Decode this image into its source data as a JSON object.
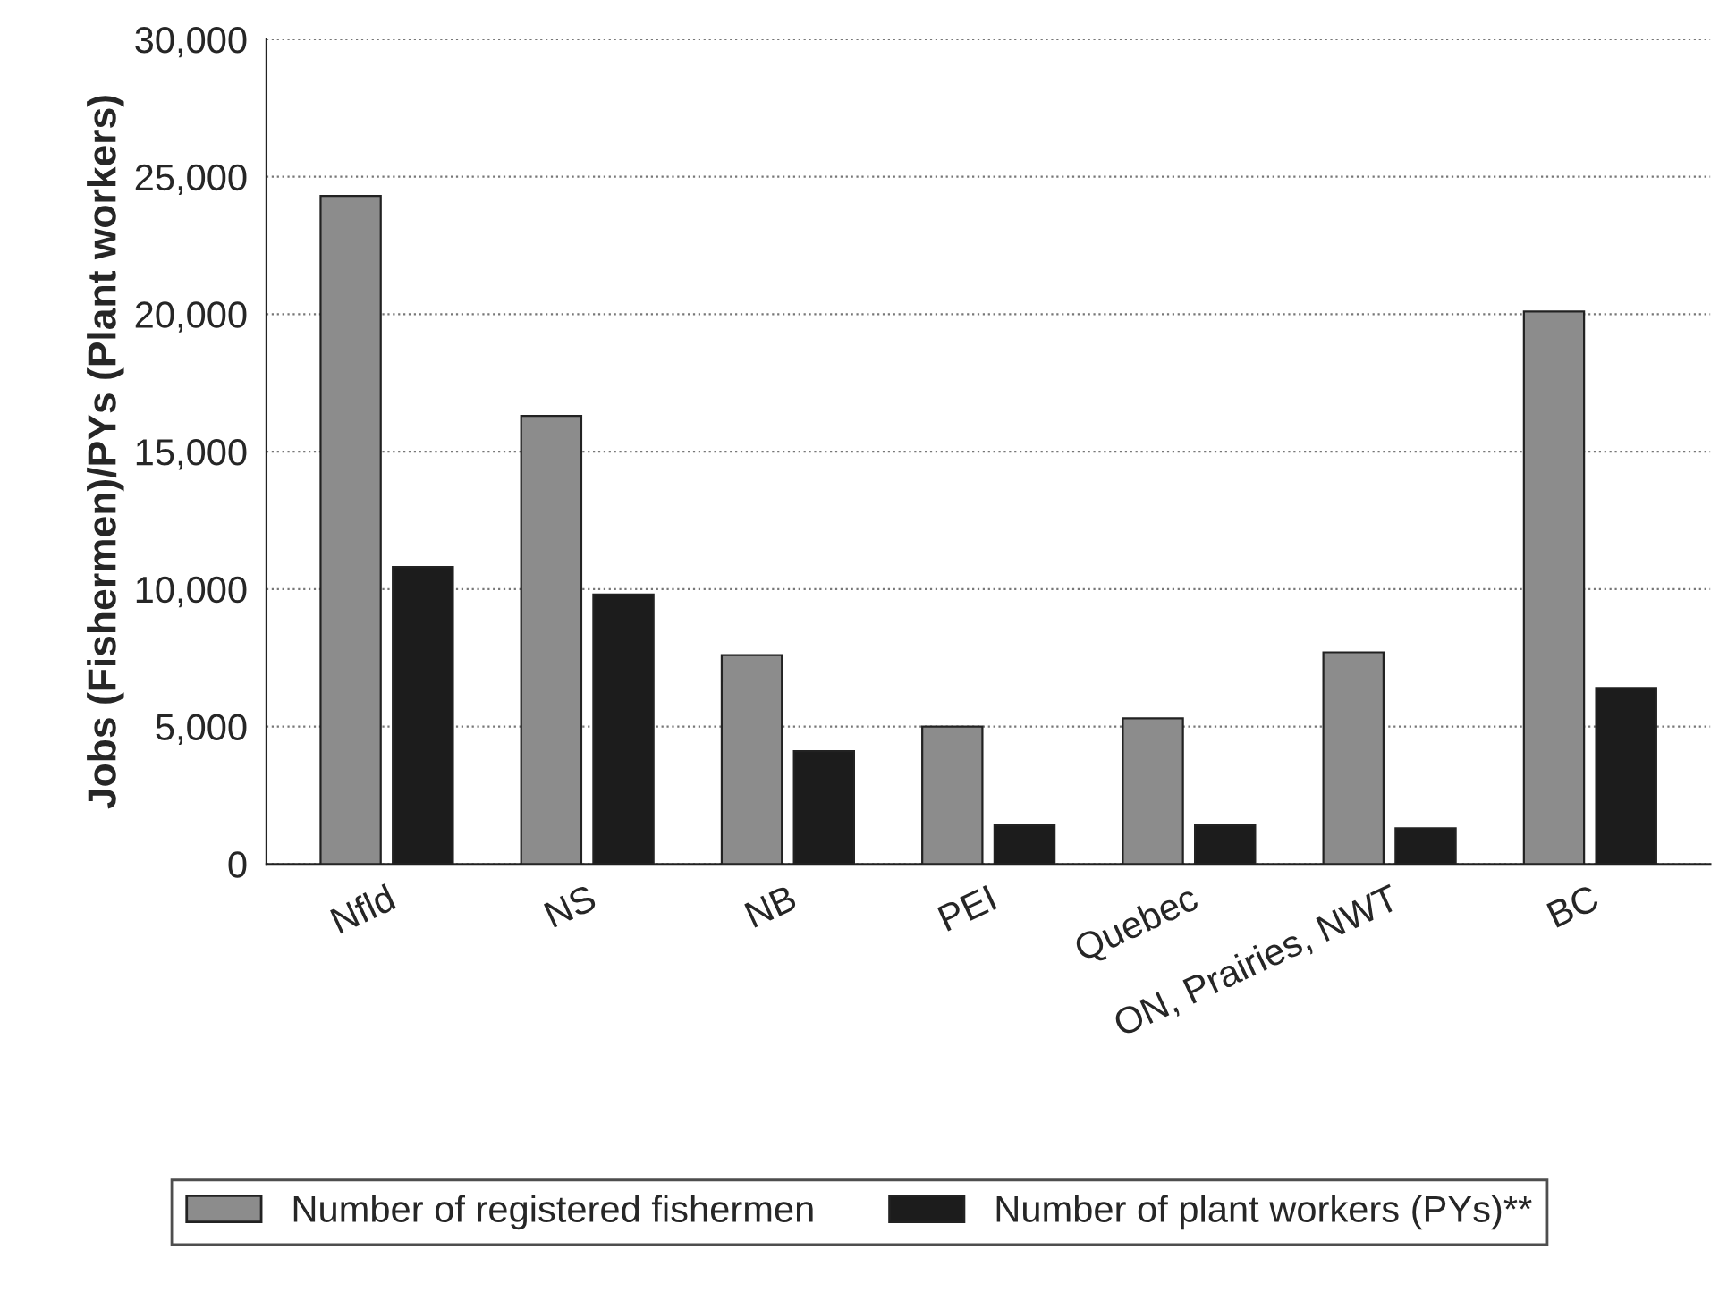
{
  "chart_data": {
    "type": "bar",
    "ylabel": "Jobs (Fishermen)/PYs (Plant workers)",
    "categories": [
      "Nfld",
      "NS",
      "NB",
      "PEI",
      "Quebec",
      "ON, Prairies, NWT",
      "BC"
    ],
    "series": [
      {
        "name": "Number of registered fishermen",
        "color": "#8c8c8c",
        "values": [
          24300,
          16300,
          7600,
          5000,
          5300,
          7700,
          20100
        ]
      },
      {
        "name": "Number of plant workers (PYs)**",
        "color": "#1c1c1c",
        "values": [
          10800,
          9800,
          4100,
          1400,
          1400,
          1300,
          6400
        ]
      }
    ],
    "ylim": [
      0,
      30000
    ],
    "yticks": [
      {
        "value": 0,
        "label": "0"
      },
      {
        "value": 5000,
        "label": "5,000"
      },
      {
        "value": 10000,
        "label": "10,000"
      },
      {
        "value": 15000,
        "label": "15,000"
      },
      {
        "value": 20000,
        "label": "20,000"
      },
      {
        "value": 25000,
        "label": "25,000"
      },
      {
        "value": 30000,
        "label": "30,000"
      }
    ],
    "grid": "y",
    "legend": "bottom"
  }
}
